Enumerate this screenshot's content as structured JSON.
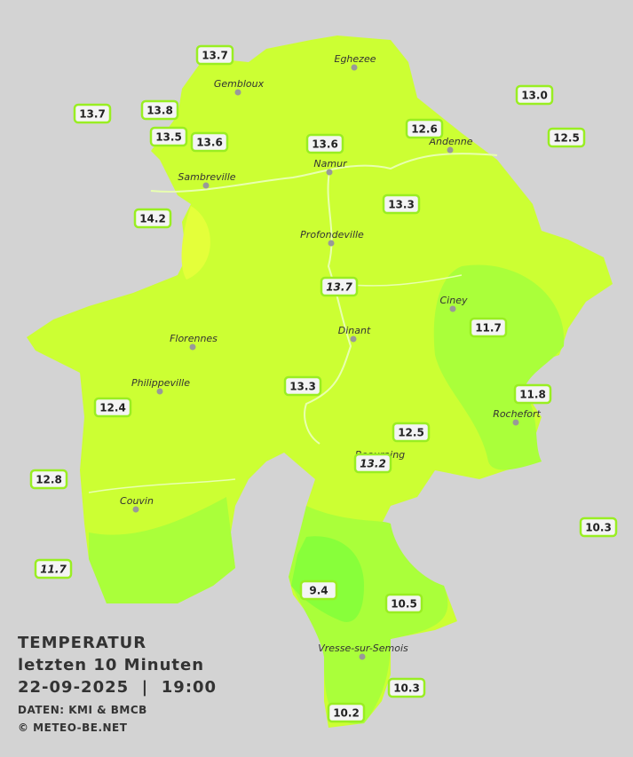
{
  "title": {
    "lines": [
      "TEMPERATUR",
      "letzten 10 Minuten",
      "22-09-2025  |  19:00"
    ],
    "credits": [
      "DATEN: KMI & BMCB",
      "© METEO-BE.NET"
    ]
  },
  "cities": [
    "Eghezee",
    "Gembloux",
    "Andenne",
    "Namur",
    "Sambreville",
    "Profondeville",
    "Ciney",
    "Dinant",
    "Florennes",
    "Philippeville",
    "Rochefort",
    "Beauraing",
    "Couvin",
    "Vresse-sur-Semois"
  ],
  "stations": [
    {
      "value": "13.7"
    },
    {
      "value": "13.7"
    },
    {
      "value": "13.8"
    },
    {
      "value": "13.5"
    },
    {
      "value": "13.6"
    },
    {
      "value": "13.6"
    },
    {
      "value": "12.6"
    },
    {
      "value": "13.0"
    },
    {
      "value": "12.5"
    },
    {
      "value": "13.3"
    },
    {
      "value": "14.2"
    },
    {
      "value": "13.7",
      "italic": true
    },
    {
      "value": "11.7"
    },
    {
      "value": "11.8"
    },
    {
      "value": "13.3"
    },
    {
      "value": "12.4"
    },
    {
      "value": "12.5"
    },
    {
      "value": "13.2",
      "italic": true
    },
    {
      "value": "12.8"
    },
    {
      "value": "10.3"
    },
    {
      "value": "11.7",
      "italic": true
    },
    {
      "value": "9.4"
    },
    {
      "value": "10.5"
    },
    {
      "value": "10.3"
    },
    {
      "value": "10.2"
    }
  ]
}
